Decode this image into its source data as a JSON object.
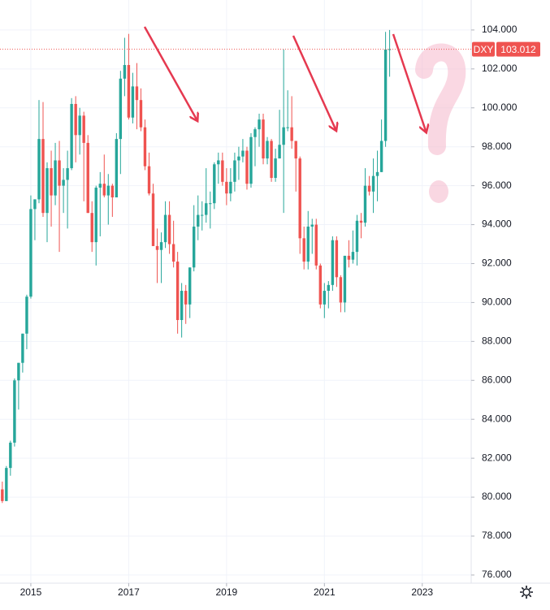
{
  "chart_data": {
    "type": "candlestick",
    "up_color": "#26a69a",
    "down_color": "#ef5350",
    "price_line_color": "#ef5350",
    "grid": true,
    "xlim": [
      2014.37,
      2024.0
    ],
    "xticks": [
      2015,
      2017,
      2019,
      2021,
      2023
    ],
    "ylim": [
      75.58,
      105.54
    ],
    "yticks": [
      {
        "value": 76,
        "label": "76.000"
      },
      {
        "value": 78,
        "label": "78.000"
      },
      {
        "value": 80,
        "label": "80.000"
      },
      {
        "value": 82,
        "label": "82.000"
      },
      {
        "value": 84,
        "label": "84.000"
      },
      {
        "value": 86,
        "label": "86.000"
      },
      {
        "value": 88,
        "label": "88.000"
      },
      {
        "value": 90,
        "label": "90.000"
      },
      {
        "value": 92,
        "label": "92.000"
      },
      {
        "value": 94,
        "label": "94.000"
      },
      {
        "value": 96,
        "label": "96.000"
      },
      {
        "value": 98,
        "label": "98.000"
      },
      {
        "value": 100,
        "label": "100.000"
      },
      {
        "value": 102,
        "label": "102.000"
      },
      {
        "value": 104,
        "label": "104.000"
      }
    ],
    "series": [
      {
        "name": "DXY",
        "x": [
          2014.333,
          2014.417,
          2014.5,
          2014.583,
          2014.667,
          2014.75,
          2014.833,
          2014.917,
          2015.0,
          2015.083,
          2015.167,
          2015.25,
          2015.333,
          2015.417,
          2015.5,
          2015.583,
          2015.667,
          2015.75,
          2015.833,
          2015.917,
          2016.0,
          2016.083,
          2016.167,
          2016.25,
          2016.333,
          2016.417,
          2016.5,
          2016.583,
          2016.667,
          2016.75,
          2016.833,
          2016.917,
          2017.0,
          2017.083,
          2017.167,
          2017.25,
          2017.333,
          2017.417,
          2017.5,
          2017.583,
          2017.667,
          2017.75,
          2017.833,
          2017.917,
          2018.0,
          2018.083,
          2018.167,
          2018.25,
          2018.333,
          2018.417,
          2018.5,
          2018.583,
          2018.667,
          2018.75,
          2018.833,
          2018.917,
          2019.0,
          2019.083,
          2019.167,
          2019.25,
          2019.333,
          2019.417,
          2019.5,
          2019.583,
          2019.667,
          2019.75,
          2019.833,
          2019.917,
          2020.0,
          2020.083,
          2020.167,
          2020.25,
          2020.333,
          2020.417,
          2020.5,
          2020.583,
          2020.667,
          2020.75,
          2020.833,
          2020.917,
          2021.0,
          2021.083,
          2021.167,
          2021.25,
          2021.333,
          2021.417,
          2021.5,
          2021.583,
          2021.667,
          2021.75,
          2021.833,
          2021.917,
          2022.0,
          2022.083,
          2022.167,
          2022.25,
          2022.333
        ],
        "open": [
          80.2,
          80.4,
          79.8,
          81.5,
          82.8,
          86.0,
          86.9,
          88.4,
          90.3,
          94.8,
          95.3,
          98.4,
          94.6,
          96.9,
          95.5,
          97.3,
          96.0,
          96.3,
          96.9,
          100.2,
          98.6,
          99.6,
          98.2,
          94.6,
          93.1,
          95.9,
          96.1,
          95.5,
          96.0,
          95.4,
          98.4,
          101.5,
          102.2,
          99.5,
          101.1,
          100.4,
          99.0,
          97.0,
          95.6,
          92.9,
          92.7,
          93.1,
          94.5,
          93.0,
          92.1,
          89.1,
          90.6,
          89.9,
          91.8,
          93.9,
          94.5,
          94.5,
          95.1,
          95.1,
          97.1,
          97.3,
          96.2,
          95.6,
          96.2,
          97.3,
          97.5,
          97.8,
          96.1,
          98.5,
          98.9,
          99.4,
          97.4,
          98.3,
          96.4,
          97.4,
          98.1,
          99.0,
          99.0,
          98.3,
          97.4,
          93.3,
          92.1,
          93.9,
          94.0,
          91.9,
          89.9,
          90.6,
          90.9,
          93.2,
          91.3,
          90.0,
          92.4,
          92.2,
          92.6,
          94.2,
          94.1,
          96.0,
          95.7,
          96.5,
          96.7,
          98.3,
          103.0
        ],
        "high": [
          80.6,
          80.8,
          81.6,
          82.9,
          86.1,
          86.9,
          88.4,
          90.4,
          95.5,
          95.3,
          100.4,
          100.3,
          97.2,
          97.8,
          98.2,
          98.3,
          96.9,
          97.8,
          100.5,
          100.6,
          100.0,
          99.8,
          98.6,
          95.2,
          96.0,
          96.7,
          97.6,
          96.6,
          96.1,
          98.7,
          101.9,
          103.6,
          103.8,
          101.8,
          102.3,
          101.0,
          99.4,
          97.7,
          96.1,
          93.8,
          93.6,
          95.2,
          95.2,
          94.2,
          92.6,
          91.0,
          90.9,
          91.8,
          95.0,
          95.5,
          95.2,
          96.9,
          95.7,
          97.2,
          97.7,
          97.7,
          96.9,
          96.9,
          97.7,
          98.0,
          98.4,
          98.0,
          98.7,
          99.0,
          99.7,
          99.7,
          98.5,
          98.4,
          97.9,
          99.9,
          103.0,
          100.9,
          100.6,
          98.3,
          97.5,
          93.9,
          94.7,
          94.3,
          94.3,
          92.0,
          91.0,
          91.1,
          93.4,
          93.4,
          91.4,
          92.4,
          93.2,
          93.7,
          94.5,
          94.6,
          96.9,
          96.5,
          97.4,
          97.8,
          99.4,
          103.9,
          104.0
        ],
        "low": [
          79.6,
          79.7,
          79.8,
          81.1,
          82.6,
          84.5,
          86.4,
          87.6,
          90.2,
          93.2,
          95.1,
          94.4,
          93.1,
          93.9,
          95.0,
          92.6,
          94.6,
          93.8,
          96.8,
          97.2,
          97.6,
          95.2,
          94.6,
          92.6,
          91.9,
          93.4,
          95.4,
          94.0,
          94.4,
          95.4,
          96.6,
          100.6,
          99.4,
          99.2,
          98.9,
          98.8,
          96.8,
          95.5,
          92.9,
          91.0,
          91.0,
          92.8,
          92.5,
          91.8,
          88.4,
          88.2,
          88.9,
          89.2,
          91.6,
          93.2,
          93.7,
          94.1,
          93.8,
          94.8,
          96.1,
          96.0,
          95.0,
          95.2,
          95.7,
          96.3,
          97.2,
          95.8,
          95.9,
          97.0,
          98.0,
          97.1,
          97.1,
          96.2,
          96.2,
          97.4,
          94.6,
          98.8,
          97.9,
          95.7,
          92.5,
          91.7,
          91.7,
          92.5,
          91.7,
          89.7,
          89.2,
          89.7,
          90.6,
          90.8,
          89.5,
          89.5,
          91.8,
          92.0,
          91.9,
          93.3,
          93.9,
          95.5,
          94.6,
          95.2,
          96.7,
          98.0,
          101.6
        ],
        "close": [
          80.4,
          79.8,
          81.5,
          82.8,
          86.0,
          86.9,
          88.4,
          90.3,
          94.8,
          95.3,
          98.4,
          94.6,
          96.9,
          95.5,
          97.3,
          96.0,
          96.3,
          96.9,
          100.2,
          98.6,
          99.6,
          98.2,
          94.6,
          93.1,
          95.9,
          96.1,
          95.5,
          96.0,
          95.4,
          98.4,
          101.5,
          102.2,
          99.5,
          101.1,
          100.4,
          99.0,
          97.0,
          95.6,
          92.9,
          92.7,
          93.1,
          94.5,
          93.0,
          92.1,
          89.1,
          90.6,
          89.9,
          91.8,
          93.9,
          94.5,
          94.5,
          95.1,
          95.1,
          97.1,
          97.3,
          96.2,
          95.6,
          96.2,
          97.3,
          97.5,
          97.8,
          96.1,
          98.5,
          98.9,
          99.4,
          97.4,
          98.3,
          96.4,
          97.4,
          98.1,
          99.0,
          99.0,
          98.3,
          97.4,
          93.3,
          92.1,
          93.9,
          94.0,
          91.9,
          89.9,
          90.6,
          90.9,
          93.2,
          91.3,
          90.0,
          92.4,
          92.2,
          92.6,
          94.2,
          94.1,
          96.0,
          95.7,
          96.5,
          96.7,
          98.3,
          103.0,
          103.012
        ]
      }
    ]
  }
}
